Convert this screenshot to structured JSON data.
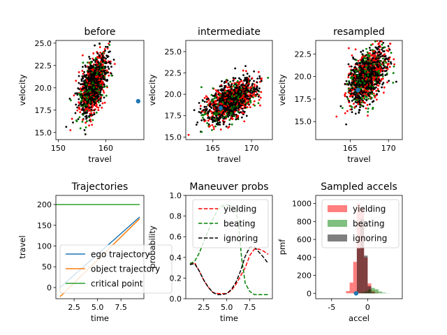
{
  "chart_data": [
    {
      "id": "before",
      "type": "scatter",
      "title": "before",
      "xlabel": "travel",
      "ylabel": "velocity",
      "xlim": [
        149.5,
        168
      ],
      "ylim": [
        14.2,
        25.3
      ],
      "xticks": [
        150,
        160
      ],
      "yticks": [
        15.0,
        17.5,
        20.0,
        22.5,
        25.0
      ],
      "cloud": {
        "cx": 157.3,
        "cy": 20.3,
        "sx": 1.4,
        "sy": 1.6,
        "rho": 0.55,
        "colors": [
          "#ff0000",
          "#008000",
          "#000000"
        ]
      },
      "highlight": {
        "x": 166.8,
        "y": 18.5,
        "color": "#1f77b4"
      }
    },
    {
      "id": "intermediate",
      "type": "scatter",
      "title": "intermediate",
      "xlabel": "travel",
      "ylabel": "velocity",
      "xlim": [
        161.5,
        172.7
      ],
      "ylim": [
        14.7,
        26.3
      ],
      "xticks": [
        165,
        170
      ],
      "yticks": [
        15.0,
        17.5,
        20.0,
        22.5,
        25.0
      ],
      "cloud": {
        "cx": 167.3,
        "cy": 19.2,
        "sx": 1.6,
        "sy": 1.2,
        "rho": 0.55,
        "colors": [
          "#ff0000",
          "#008000",
          "#000000"
        ]
      },
      "highlight": {
        "x": 166.0,
        "y": 18.4,
        "color": "#1f77b4"
      }
    },
    {
      "id": "resampled",
      "type": "scatter",
      "title": "resampled",
      "xlabel": "travel",
      "ylabel": "velocity",
      "xlim": [
        160.5,
        171.8
      ],
      "ylim": [
        13.0,
        24.0
      ],
      "xticks": [
        165,
        170
      ],
      "yticks": [
        15.0,
        17.5,
        20.0,
        22.5
      ],
      "cloud": {
        "cx": 167.2,
        "cy": 20.0,
        "sx": 1.2,
        "sy": 1.5,
        "rho": 0.5,
        "colors": [
          "#ff0000",
          "#008000",
          "#000000"
        ]
      },
      "highlight": {
        "x": 166.0,
        "y": 18.5,
        "color": "#1f77b4"
      }
    },
    {
      "id": "trajectories",
      "type": "line",
      "title": "Trajectories",
      "xlabel": "time",
      "ylabel": "travel",
      "xlim": [
        0.55,
        9.95
      ],
      "ylim": [
        -27,
        222
      ],
      "xticks": [
        2.5,
        5.0,
        7.5
      ],
      "yticks": [
        0,
        50,
        100,
        150,
        200
      ],
      "series": [
        {
          "name": "ego trajectory",
          "color": "#1f77b4",
          "x": [
            1.0,
            9.5
          ],
          "y": [
            0,
            170
          ]
        },
        {
          "name": "object trajectory",
          "color": "#ff7f0e",
          "x": [
            1.0,
            9.5
          ],
          "y": [
            -22,
            166
          ]
        },
        {
          "name": "critical point",
          "color": "#2ca02c",
          "x": [
            0.55,
            9.5
          ],
          "y": [
            200,
            200
          ]
        }
      ]
    },
    {
      "id": "maneuver",
      "type": "line",
      "title": "Maneuver probs",
      "xlabel": "time",
      "ylabel": "probability",
      "xlim": [
        0.55,
        9.95
      ],
      "ylim": [
        0.0,
        1.0
      ],
      "xticks": [
        2.5,
        5.0,
        7.5
      ],
      "yticks": [
        0.0,
        0.2,
        0.4,
        0.6,
        0.8,
        1.0
      ],
      "series": [
        {
          "name": "yielding",
          "color": "#ff0000",
          "dash": true,
          "x": [
            1.0,
            1.5,
            2.0,
            2.5,
            3.0,
            3.5,
            4.0,
            4.5,
            5.0,
            5.5,
            6.0,
            6.5,
            7.0,
            7.5,
            8.0,
            8.5,
            9.0,
            9.5
          ],
          "y": [
            0.33,
            0.35,
            0.27,
            0.18,
            0.11,
            0.06,
            0.05,
            0.05,
            0.05,
            0.08,
            0.14,
            0.22,
            0.3,
            0.42,
            0.48,
            0.48,
            0.46,
            0.43
          ]
        },
        {
          "name": "beating",
          "color": "#008000",
          "dash": true,
          "x": [
            1.0,
            1.5,
            2.0,
            2.5,
            3.0,
            3.5,
            4.0,
            4.5,
            5.0,
            5.5,
            6.0,
            6.3,
            6.6,
            7.0,
            7.5,
            8.0,
            8.5,
            9.0,
            9.5
          ],
          "y": [
            0.34,
            0.36,
            0.44,
            0.55,
            0.66,
            0.77,
            0.86,
            0.9,
            0.91,
            0.9,
            0.86,
            0.7,
            0.4,
            0.15,
            0.07,
            0.04,
            0.04,
            0.04,
            0.04
          ]
        },
        {
          "name": "ignoring",
          "color": "#000000",
          "dash": true,
          "x": [
            1.0,
            1.5,
            2.0,
            2.5,
            3.0,
            3.5,
            4.0,
            4.5,
            5.0,
            5.5,
            6.0,
            6.5,
            7.0,
            7.5,
            8.0,
            8.5,
            9.0,
            9.5
          ],
          "y": [
            0.33,
            0.34,
            0.27,
            0.18,
            0.11,
            0.06,
            0.04,
            0.04,
            0.05,
            0.09,
            0.16,
            0.27,
            0.41,
            0.5,
            0.5,
            0.45,
            0.4,
            0.34
          ]
        }
      ]
    },
    {
      "id": "accels",
      "type": "bar",
      "title": "Sampled accels",
      "xlabel": "accel",
      "ylabel": "pmf",
      "xlim": [
        -7.2,
        4.8
      ],
      "ylim": [
        -60,
        1090
      ],
      "xticks": [
        -5,
        0
      ],
      "yticks": [
        0,
        200,
        400,
        600,
        800,
        1000
      ],
      "bin_edges": [
        -3.0,
        -2.5,
        -2.0,
        -1.5,
        -1.0,
        -0.5,
        0.0,
        0.5,
        1.0,
        1.5,
        2.0,
        2.5,
        3.0
      ],
      "series": [
        {
          "name": "yielding",
          "color": "#ff0000",
          "alpha": 0.5,
          "values": [
            25,
            120,
            350,
            1000,
            950,
            400,
            110,
            30,
            8,
            0,
            0,
            0
          ]
        },
        {
          "name": "beating",
          "color": "#008000",
          "alpha": 0.5,
          "values": [
            0,
            0,
            0,
            0,
            8,
            20,
            45,
            60,
            45,
            20,
            8,
            2
          ]
        },
        {
          "name": "ignoring",
          "color": "#000000",
          "alpha": 0.5,
          "values": [
            0,
            0,
            5,
            500,
            830,
            420,
            80,
            10,
            0,
            0,
            0,
            0
          ]
        }
      ],
      "highlight": {
        "x": -1.6,
        "y": 0,
        "color": "#1f77b4"
      }
    }
  ]
}
